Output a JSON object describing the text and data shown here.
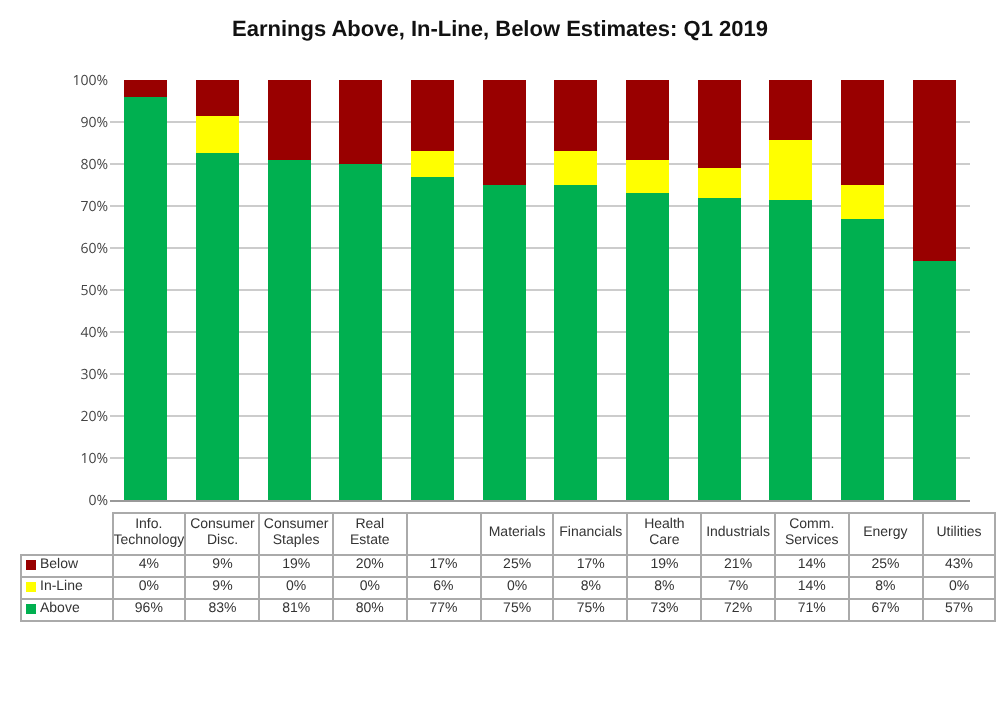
{
  "chart_data": {
    "type": "bar",
    "title": "Earnings Above, In-Line, Below Estimates: Q1 2019",
    "categories": [
      "Info. Technology",
      "Consumer Disc.",
      "Consumer Staples",
      "Real Estate",
      null,
      "Materials",
      "Financials",
      "Health Care",
      "Industrials",
      "Comm. Services",
      "Energy",
      "Utilities"
    ],
    "stacked": true,
    "ylim": [
      0,
      100
    ],
    "yticks": [
      {
        "value": 0,
        "label": "0%"
      },
      {
        "value": 10,
        "label": "10%"
      },
      {
        "value": 20,
        "label": "20%"
      },
      {
        "value": 30,
        "label": "30%"
      },
      {
        "value": 40,
        "label": "40%"
      },
      {
        "value": 50,
        "label": "50%"
      },
      {
        "value": 60,
        "label": "60%"
      },
      {
        "value": 70,
        "label": "70%"
      },
      {
        "value": 80,
        "label": "80%"
      },
      {
        "value": 90,
        "label": "90%"
      },
      {
        "value": 100,
        "label": "100%"
      }
    ],
    "grid": "y",
    "legend": "bottom left",
    "series": [
      {
        "name": "Above",
        "color": "#00b050",
        "values": [
          96,
          82.6,
          81,
          80,
          77,
          75,
          75,
          73,
          72,
          71.4,
          67,
          57
        ],
        "value_labels": [
          "96%",
          "83%",
          "81%",
          "80%",
          "77%",
          "75%",
          "75%",
          "73%",
          "72%",
          "71%",
          "67%",
          "57%"
        ]
      },
      {
        "name": "In-Line",
        "color": "#ffff00",
        "values": [
          0,
          8.8,
          0,
          0,
          6,
          0,
          8,
          8,
          7,
          14.3,
          8,
          0
        ],
        "value_labels": [
          "0%",
          "9%",
          "0%",
          "0%",
          "6%",
          "0%",
          "8%",
          "8%",
          "7%",
          "14%",
          "8%",
          "0%"
        ]
      },
      {
        "name": "Below",
        "color": "#990000",
        "values": [
          4,
          8.6,
          19,
          20,
          17,
          25,
          17,
          19,
          21,
          14.3,
          25,
          43
        ],
        "value_labels": [
          "4%",
          "9%",
          "19%",
          "20%",
          "17%",
          "25%",
          "17%",
          "19%",
          "21%",
          "14%",
          "25%",
          "43%"
        ]
      }
    ]
  }
}
